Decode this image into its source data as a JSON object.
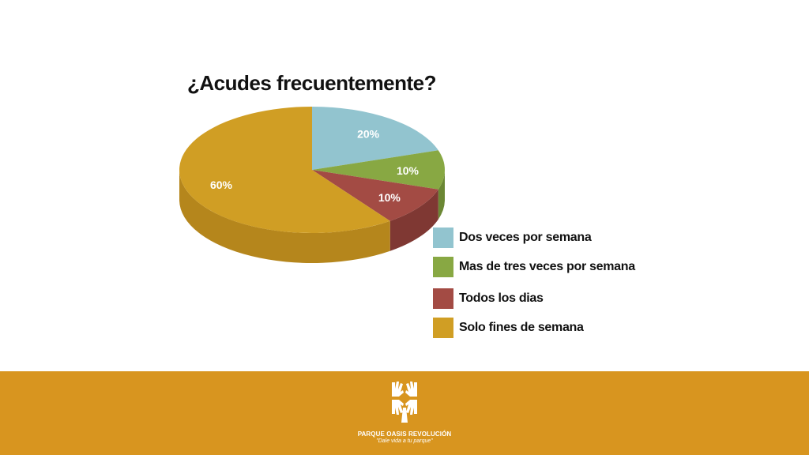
{
  "chart_data": {
    "type": "pie",
    "title": "¿Acudes frecuentemente?",
    "slices": [
      {
        "label": "Dos veces por semana",
        "value": 20,
        "value_label": "20%",
        "color": "#92c4cf",
        "side_color": "#6f9aa4"
      },
      {
        "label": "Mas de tres veces por semana",
        "value": 10,
        "value_label": "10%",
        "color": "#88a843",
        "side_color": "#6b8734"
      },
      {
        "label": "Todos los dias",
        "value": 10,
        "value_label": "10%",
        "color": "#a34b44",
        "side_color": "#7f3833"
      },
      {
        "label": "Solo fines de semana",
        "value": 60,
        "value_label": "60%",
        "color": "#d09e24",
        "side_color": "#b5861c"
      }
    ],
    "legend_position": "bottom-right",
    "style": "3d-pie"
  },
  "footer": {
    "org_name": "PARQUE OASIS REVOLUCIÓN",
    "motto": "\"Dale vida a tu parque\"",
    "background_color": "#d8951f",
    "logo_icon": "hands-tree-logo"
  }
}
